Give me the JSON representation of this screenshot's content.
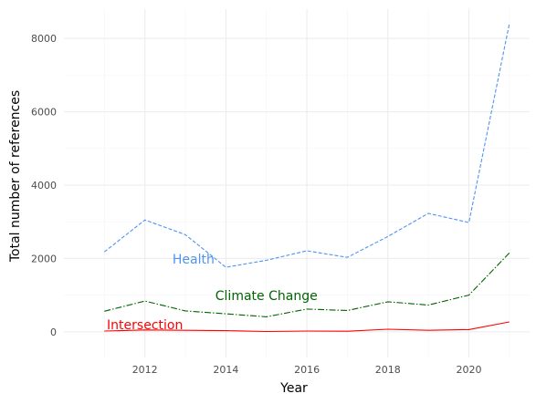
{
  "chart_data": {
    "type": "line",
    "title": "",
    "xlabel": "Year",
    "ylabel": "Total number of references",
    "x": [
      2011,
      2012,
      2013,
      2014,
      2015,
      2016,
      2017,
      2018,
      2019,
      2020,
      2021
    ],
    "xlim": [
      2010.0,
      2021.5
    ],
    "ylim": [
      -700,
      8800
    ],
    "x_ticks": [
      2012,
      2014,
      2016,
      2018,
      2020
    ],
    "y_ticks": [
      0,
      2000,
      4000,
      6000,
      8000
    ],
    "grid": true,
    "legend": "none",
    "series": [
      {
        "name": "Health",
        "color": "#4f94ef",
        "dash": "dashed",
        "label_at": [
          2013.2,
          1980
        ],
        "values": [
          2180,
          3050,
          2650,
          1760,
          1950,
          2210,
          2030,
          2600,
          3230,
          2980,
          8400
        ]
      },
      {
        "name": "Climate Change",
        "color": "#006400",
        "dash": "dashdot",
        "label_at": [
          2015.0,
          990
        ],
        "values": [
          560,
          840,
          570,
          490,
          410,
          620,
          580,
          820,
          730,
          1000,
          2150
        ]
      },
      {
        "name": "Intersection",
        "color": "#ff0000",
        "dash": "solid",
        "label_at": [
          2012.0,
          190
        ],
        "values": [
          20,
          50,
          40,
          30,
          10,
          20,
          15,
          70,
          40,
          60,
          270
        ]
      }
    ]
  }
}
